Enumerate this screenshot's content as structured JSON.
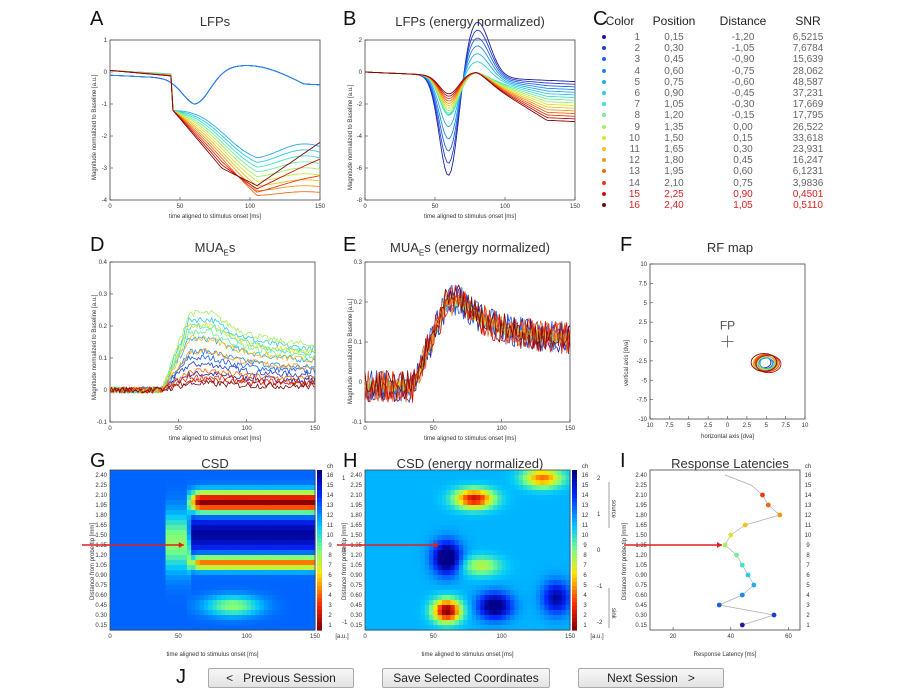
{
  "panels": {
    "A": {
      "letter": "A",
      "title": "LFPs",
      "ylabel": "Magnitude normalized to Baseline [a.u.]",
      "xlabel": "time aligned to stimulus onset [ms]"
    },
    "B": {
      "letter": "B",
      "title": "LFPs (energy normalized)",
      "ylabel": "Magnitude normalized to Baseline [a.u.]",
      "xlabel": "time aligned to stimulus onset [ms]"
    },
    "C": {
      "letter": "C"
    },
    "D": {
      "letter": "D",
      "title_main": "MUA",
      "title_sub": "E",
      "title_rest": "s",
      "ylabel": "Magnitude normalized to Baseline [a.u.]",
      "xlabel": "time aligned to stimulus onset [ms]"
    },
    "E": {
      "letter": "E",
      "title_main": "MUA",
      "title_sub": "E",
      "title_rest": "s (energy normalized)",
      "ylabel": "Magnitude normalized to Baseline [a.u.]",
      "xlabel": "time aligned to stimulus onset [ms]"
    },
    "F": {
      "letter": "F",
      "title": "RF map",
      "ylabel": "vertical axis [dva]",
      "xlabel": "horizontal axis [dva]",
      "fp_label": "FP"
    },
    "G": {
      "letter": "G",
      "title": "CSD",
      "ylabel": "Distance from probe tip [mm]",
      "xlabel": "time aligned to stimulus onset [ms]",
      "ch_label": "ch",
      "unit": "[a.u.]"
    },
    "H": {
      "letter": "H",
      "title": "CSD (energy normalized)",
      "ylabel": "Distance from probe tip [mm]",
      "xlabel": "time aligned to stimulus onset [ms]",
      "ch_label": "ch",
      "unit": "[a.u.]",
      "source_label": "source",
      "sink_label": "sink"
    },
    "I": {
      "letter": "I",
      "title": "Response Latencies",
      "ylabel": "Distance from probe tip [mm]",
      "xlabel": "Response Latency [ms]",
      "ch_label": "ch"
    },
    "J": {
      "letter": "J"
    }
  },
  "table": {
    "headers": [
      "Color",
      "Position",
      "Distance",
      "SNR"
    ],
    "rows": [
      {
        "ch": "1",
        "position": "0,15",
        "distance": "-1,20",
        "snr": "6,5215",
        "dot": "#1c1ca0",
        "highlight": false
      },
      {
        "ch": "2",
        "position": "0,30",
        "distance": "-1,05",
        "snr": "7,6784",
        "dot": "#1f3fd0",
        "highlight": false
      },
      {
        "ch": "3",
        "position": "0,45",
        "distance": "-0,90",
        "snr": "15,639",
        "dot": "#2060f0",
        "highlight": false
      },
      {
        "ch": "4",
        "position": "0,60",
        "distance": "-0,75",
        "snr": "28,062",
        "dot": "#1e88f5",
        "highlight": false
      },
      {
        "ch": "5",
        "position": "0,75",
        "distance": "-0,60",
        "snr": "48,587",
        "dot": "#24aaf2",
        "highlight": false
      },
      {
        "ch": "6",
        "position": "0,90",
        "distance": "-0,45",
        "snr": "37,231",
        "dot": "#2ccbe6",
        "highlight": false
      },
      {
        "ch": "7",
        "position": "1,05",
        "distance": "-0,30",
        "snr": "17,669",
        "dot": "#3fe3c6",
        "highlight": false
      },
      {
        "ch": "8",
        "position": "1,20",
        "distance": "-0,15",
        "snr": "17,795",
        "dot": "#6ff09a",
        "highlight": false
      },
      {
        "ch": "9",
        "position": "1,35",
        "distance": "0,00",
        "snr": "26,522",
        "dot": "#a6f060",
        "highlight": false
      },
      {
        "ch": "10",
        "position": "1,50",
        "distance": "0,15",
        "snr": "33,618",
        "dot": "#d8e830",
        "highlight": false
      },
      {
        "ch": "11",
        "position": "1,65",
        "distance": "0,30",
        "snr": "23,931",
        "dot": "#f5c020",
        "highlight": false
      },
      {
        "ch": "12",
        "position": "1,80",
        "distance": "0,45",
        "snr": "16,247",
        "dot": "#f59a18",
        "highlight": false
      },
      {
        "ch": "13",
        "position": "1,95",
        "distance": "0,60",
        "snr": "6,1231",
        "dot": "#f06a14",
        "highlight": false
      },
      {
        "ch": "14",
        "position": "2,10",
        "distance": "0,75",
        "snr": "3,9836",
        "dot": "#e83a10",
        "highlight": false
      },
      {
        "ch": "15",
        "position": "2,25",
        "distance": "0,90",
        "snr": "0,4501",
        "dot": "#cc1010",
        "highlight": true
      },
      {
        "ch": "16",
        "position": "2,40",
        "distance": "1,05",
        "snr": "0,5110",
        "dot": "#7a0a0a",
        "highlight": true
      }
    ]
  },
  "axes": {
    "time_ticks": [
      "0",
      "50",
      "100",
      "150"
    ],
    "a_yticks": [
      "1",
      "0",
      "-1",
      "-2",
      "-3",
      "-4"
    ],
    "b_yticks": [
      "2",
      "0",
      "-2",
      "-4",
      "-6",
      "-8"
    ],
    "d_yticks": [
      "0.4",
      "0.3",
      "0.2",
      "0.1",
      "0",
      "-0.1"
    ],
    "e_yticks": [
      "0.3",
      "0.2",
      "0.1",
      "0",
      "-0.1"
    ],
    "f_xticks": [
      "10",
      "7.5",
      "5",
      "2.5",
      "0",
      "2.5",
      "5",
      "7.5",
      "10"
    ],
    "f_yticks": [
      "10",
      "7.5",
      "5",
      "2.5",
      "0",
      "-2.5",
      "-5",
      "-7.5",
      "-10"
    ],
    "depth_ticks": [
      "2.40",
      "2.25",
      "2.10",
      "1.95",
      "1.80",
      "1.65",
      "1.50",
      "1.35",
      "1.20",
      "1.05",
      "0.90",
      "0.75",
      "0.60",
      "0.45",
      "0.30",
      "0.15"
    ],
    "ch_ticks": [
      "16",
      "15",
      "14",
      "13",
      "12",
      "11",
      "10",
      "9",
      "8",
      "7",
      "6",
      "5",
      "4",
      "3",
      "2",
      "1"
    ],
    "g_cbar_ticks": [
      "1",
      "0",
      "-1"
    ],
    "h_cbar_ticks": [
      "2",
      "1",
      "0",
      "-1",
      "-2"
    ],
    "i_xticks": [
      "20",
      "40",
      "60"
    ]
  },
  "buttons": {
    "prev": "<   Previous Session",
    "save": "Save Selected Coordinates",
    "next": "Next Session   >"
  },
  "colors": {
    "highlight_text": "#e02020",
    "marker_arrow": "#e02020"
  }
}
